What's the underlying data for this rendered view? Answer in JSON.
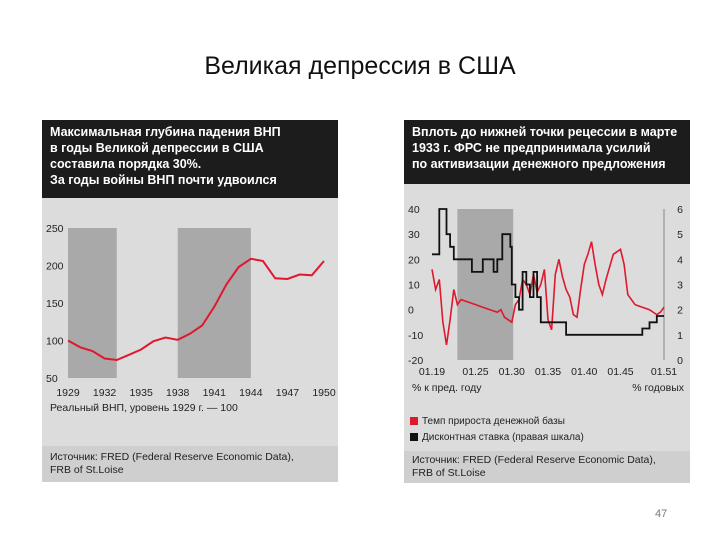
{
  "slide": {
    "title": "Великая депрессия в США",
    "page_number": "47"
  },
  "left": {
    "header_lines": [
      "Максимальная глубина падения ВНП",
      "в годы Великой депрессии в США",
      "составила порядка 30%.",
      "За годы войны ВНП почти удвоился"
    ],
    "axis_note": "Реальный ВНП, уровень 1929 г. — 100",
    "source_lines": [
      "Источник: FRED (Federal Reserve Economic Data),",
      "FRB of St.Loise"
    ],
    "colors": {
      "line": "#e0182d",
      "shade": "#a9a9a9",
      "panel": "#dcdcdc"
    }
  },
  "right": {
    "header_lines": [
      "Вплоть до нижней точки рецессии в марте",
      "1933 г. ФРС не предпринимала усилий",
      "по активизации денежного предложения"
    ],
    "left_unit": "% к пред. году",
    "right_unit": "% годовых",
    "legend": [
      {
        "label": "Темп прироста денежной базы",
        "color": "#e0182d"
      },
      {
        "label": "Дисконтная ставка (правая шкала)",
        "color": "#111111"
      }
    ],
    "source_lines": [
      "Источник: FRED (Federal Reserve Economic Data),",
      "FRB of St.Loise"
    ]
  },
  "chart_data": [
    {
      "type": "line",
      "title": "Максимальная глубина падения ВНП в годы Великой депрессии в США составила порядка 30%. За годы войны ВНП почти удвоился",
      "xlabel": "",
      "ylabel": "Реальный ВНП, уровень 1929 г. — 100",
      "x_ticks": [
        "1929",
        "1932",
        "1935",
        "1938",
        "1941",
        "1944",
        "1947",
        "1950"
      ],
      "y_ticks": [
        "50",
        "100",
        "150",
        "200",
        "250"
      ],
      "xlim": [
        1929,
        1950
      ],
      "ylim": [
        50,
        250
      ],
      "grid": false,
      "shaded_periods": [
        [
          1929,
          1933
        ],
        [
          1938,
          1944
        ]
      ],
      "series": [
        {
          "x": [
            1929,
            1930,
            1931,
            1932,
            1933,
            1934,
            1935,
            1936,
            1937,
            1938,
            1939,
            1940,
            1941,
            1942,
            1943,
            1944,
            1945,
            1946,
            1947,
            1948,
            1949,
            1950
          ],
          "values": [
            100,
            91,
            86,
            76,
            74,
            81,
            88,
            99,
            104,
            101,
            109,
            120,
            145,
            175,
            198,
            209,
            206,
            183,
            182,
            188,
            187,
            206
          ]
        }
      ]
    },
    {
      "type": "line",
      "title": "Вплоть до нижней точки рецессии в марте 1933 г. ФРС не предпринимала усилий по активизации денежного предложения",
      "xlabel": "",
      "ylabel": "% к пред. году",
      "ylabel_right": "% годовых",
      "x_ticks": [
        "01.19",
        "01.25",
        "01.30",
        "01.35",
        "01.40",
        "01.45",
        "01.51"
      ],
      "y_ticks_left": [
        "-20",
        "-10",
        "0",
        "10",
        "20",
        "30",
        "40"
      ],
      "y_ticks_right": [
        "0",
        "1",
        "2",
        "3",
        "4",
        "5",
        "6"
      ],
      "xlim": [
        1919,
        1951
      ],
      "ylim_left": [
        -20,
        40
      ],
      "ylim_right": [
        0,
        6
      ],
      "grid": false,
      "shaded_periods": [
        [
          1922.5,
          1930.2
        ]
      ],
      "series": [
        {
          "name": "Темп прироста денежной базы",
          "axis": "left",
          "x": [
            1919,
            1919.5,
            1920,
            1920.5,
            1921,
            1921.5,
            1922,
            1922.5,
            1923,
            1924,
            1925,
            1926,
            1927,
            1928,
            1928.5,
            1929,
            1929.5,
            1930,
            1930.5,
            1931,
            1931.5,
            1932,
            1932.5,
            1933,
            1933.5,
            1934,
            1934.5,
            1935,
            1935.5,
            1936,
            1936.5,
            1937,
            1937.5,
            1938,
            1938.5,
            1939,
            1939.5,
            1940,
            1940.5,
            1941,
            1941.5,
            1942,
            1942.5,
            1943,
            1944,
            1945,
            1945.5,
            1946,
            1947,
            1948,
            1949,
            1950,
            1950.5,
            1951
          ],
          "values": [
            16,
            8,
            12,
            -5,
            -14,
            -4,
            8,
            2,
            4,
            3,
            2,
            1,
            0,
            -1,
            0,
            -3,
            -4,
            -5,
            2,
            4,
            12,
            10,
            6,
            14,
            7,
            10,
            16,
            -4,
            -8,
            14,
            20,
            13,
            8,
            5,
            -2,
            -3,
            8,
            18,
            22,
            27,
            18,
            10,
            6,
            12,
            22,
            24,
            18,
            6,
            2,
            1,
            0,
            -2,
            -1,
            1
          ]
        },
        {
          "name": "Дисконтная ставка (правая шкала)",
          "axis": "right",
          "x": [
            1919,
            1920,
            1920.5,
            1921,
            1921.5,
            1922,
            1924,
            1924.5,
            1925,
            1926,
            1927,
            1927.5,
            1928,
            1928.7,
            1929,
            1929.5,
            1929.8,
            1930,
            1930.5,
            1931,
            1931.5,
            1932,
            1932.5,
            1933,
            1933.5,
            1934,
            1937.5,
            1940,
            1945.5,
            1946,
            1948,
            1949,
            1950,
            1951
          ],
          "values": [
            4.2,
            6,
            6,
            5,
            4.5,
            4,
            4,
            3.5,
            3.5,
            4,
            4,
            3.5,
            4,
            5,
            5,
            5,
            4.5,
            3,
            2.5,
            2,
            3.5,
            3,
            2.5,
            3.5,
            2.5,
            1.5,
            1,
            1,
            1,
            1,
            1.25,
            1.5,
            1.75,
            1.75
          ]
        }
      ]
    }
  ]
}
